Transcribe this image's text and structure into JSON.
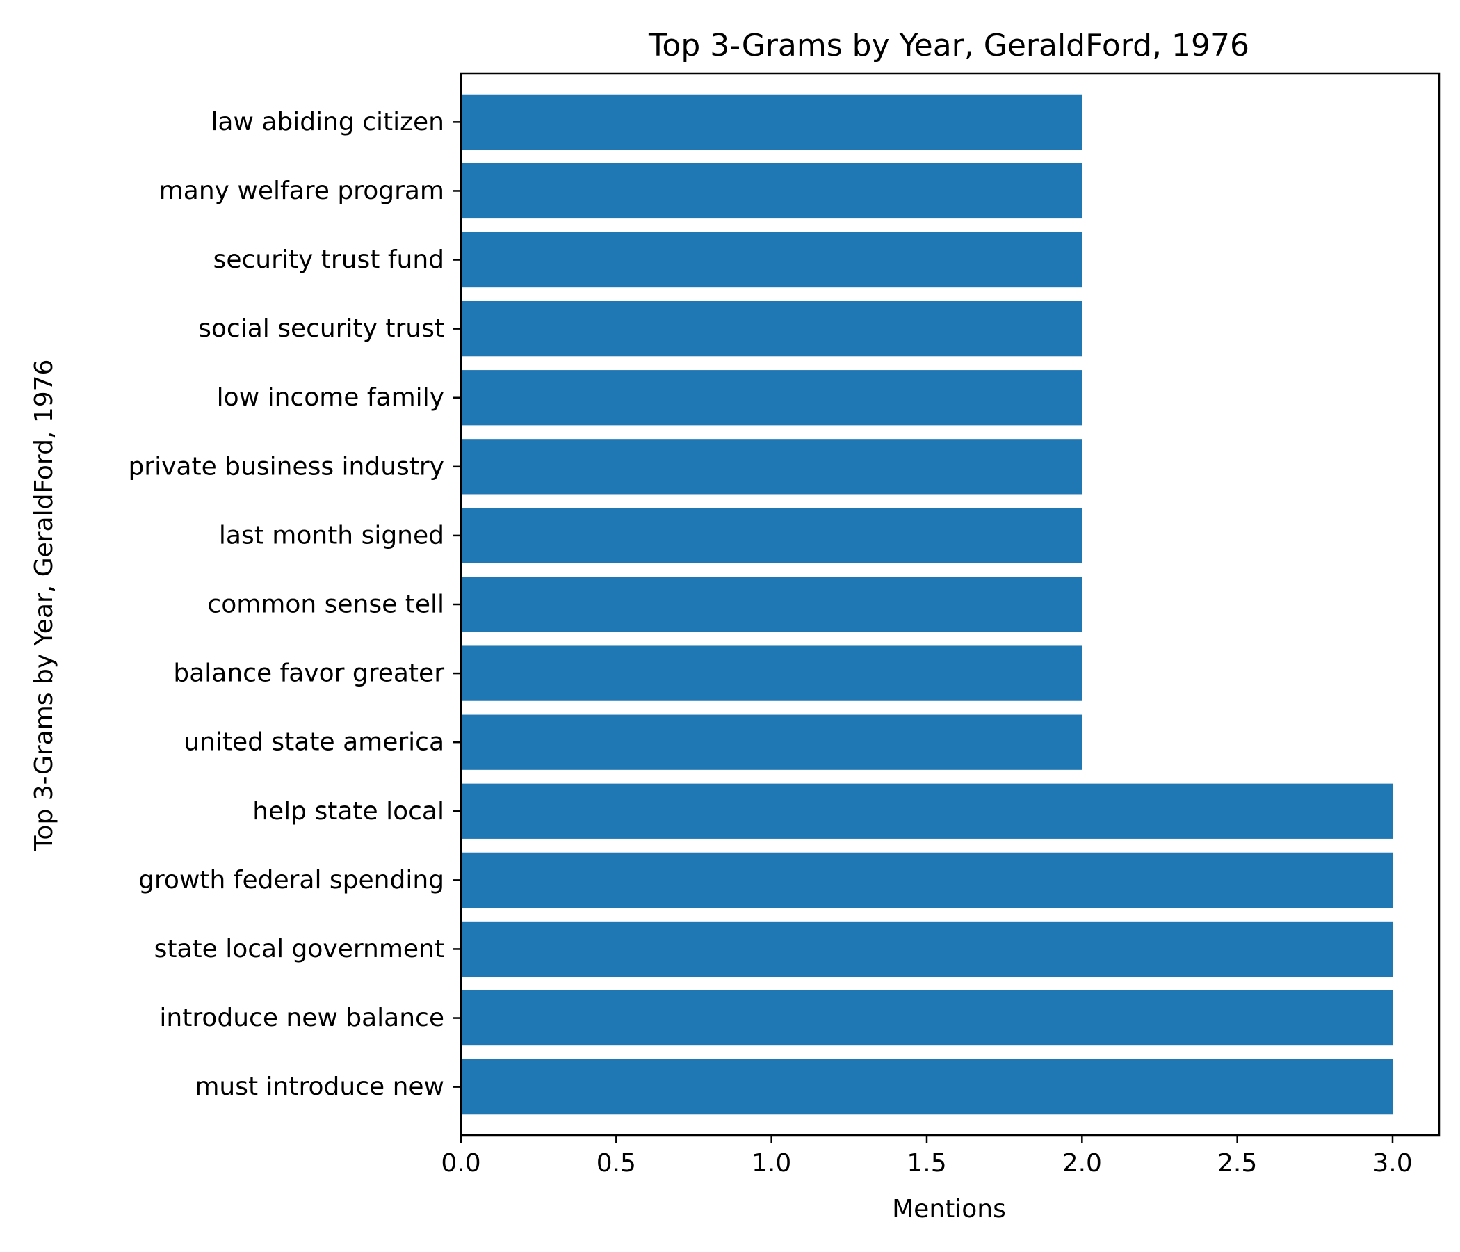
{
  "chart_data": {
    "type": "bar",
    "orientation": "horizontal",
    "title": "Top 3-Grams by Year, GeraldFord, 1976",
    "xlabel": "Mentions",
    "ylabel": "Top 3-Grams by Year, GeraldFord, 1976",
    "categories": [
      "must introduce new",
      "introduce new balance",
      "state local government",
      "growth federal spending",
      "help state local",
      "united state america",
      "balance favor greater",
      "common sense tell",
      "last month signed",
      "private business industry",
      "low income family",
      "social security trust",
      "security trust fund",
      "many welfare program",
      "law abiding citizen"
    ],
    "values": [
      3,
      3,
      3,
      3,
      3,
      2,
      2,
      2,
      2,
      2,
      2,
      2,
      2,
      2,
      2
    ],
    "xlim": [
      0,
      3.15
    ],
    "xticks": [
      "0.0",
      "0.5",
      "1.0",
      "1.5",
      "2.0",
      "2.5",
      "3.0"
    ],
    "grid": false,
    "legend": "none",
    "bar_color": "#1f77b4"
  }
}
